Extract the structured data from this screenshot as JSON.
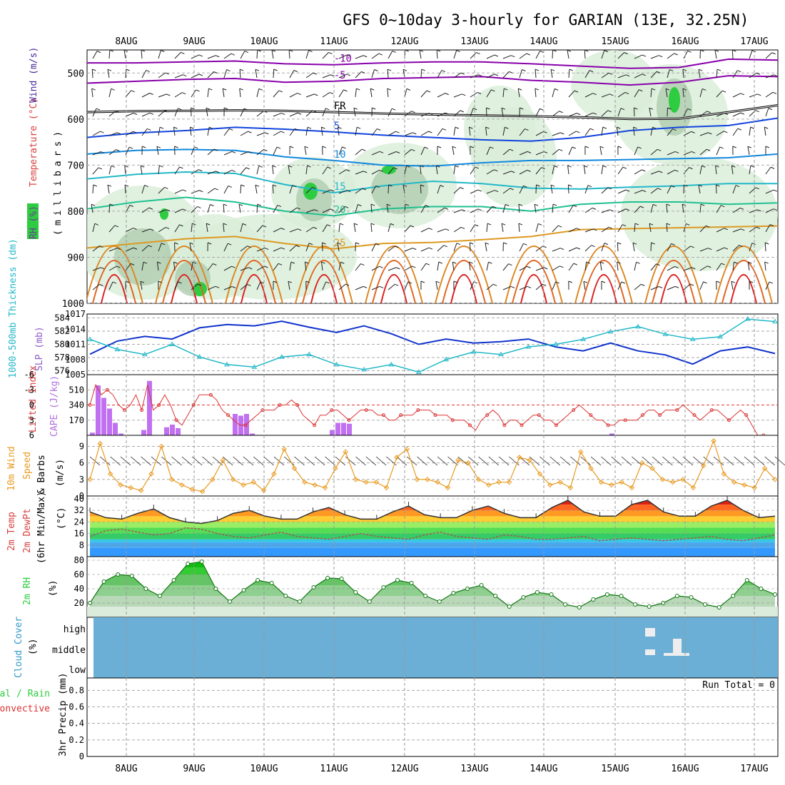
{
  "title": "GFS 0~10day 3-hourly for GARIAN (13E, 32.25N)",
  "days": [
    "8AUG",
    "9AUG",
    "10AUG",
    "11AUG",
    "12AUG",
    "13AUG",
    "14AUG",
    "15AUG",
    "16AUG",
    "17AUG"
  ],
  "colors": {
    "rh_green": "#2ecc40",
    "purple": "#8800aa",
    "blue_dark": "#1144dd",
    "cyan": "#22b8c8",
    "teal": "#20c090",
    "orange": "#dd9922",
    "red": "#dd2222",
    "lifted_red": "#dd3333",
    "cape_purple": "#c070f0",
    "wind_orange": "#e89a20",
    "cloud_blue": "#6baed6",
    "slp_cyan": "#22b8c8",
    "thick_blue": "#1133cc"
  },
  "chart_data": [
    {
      "panel": "upper-air",
      "type": "contour",
      "ylabel_parts": [
        "RH (%)",
        "Temperature (°C)",
        "Wind (m/s)"
      ],
      "axis_title": "(millibars)",
      "y_ticks": [
        "500",
        "600",
        "700",
        "800",
        "900",
        "1000"
      ],
      "y_range": [
        450,
        1000
      ],
      "temperature_contours": [
        {
          "label": "-10",
          "level_mb": [
            478,
            478,
            476,
            474,
            480,
            482,
            478,
            476,
            476,
            480,
            485,
            490,
            488,
            470,
            472
          ]
        },
        {
          "label": "-5",
          "level_mb": [
            522,
            518,
            514,
            512,
            520,
            518,
            512,
            510,
            508,
            516,
            520,
            526,
            520,
            506,
            508
          ]
        },
        {
          "label": "FR",
          "level_mb": [
            585,
            583,
            582,
            581,
            582,
            585,
            588,
            590,
            592,
            594,
            596,
            600,
            599,
            585,
            570
          ]
        },
        {
          "label": "5",
          "level_mb": [
            640,
            630,
            625,
            618,
            622,
            628,
            635,
            640,
            645,
            648,
            640,
            625,
            618,
            614,
            598
          ]
        },
        {
          "label": "10",
          "level_mb": [
            676,
            668,
            666,
            668,
            682,
            690,
            700,
            702,
            695,
            690,
            690,
            688,
            686,
            684,
            676
          ]
        },
        {
          "label": "15",
          "level_mb": [
            730,
            720,
            715,
            718,
            742,
            760,
            745,
            735,
            740,
            750,
            752,
            748,
            745,
            740,
            740
          ]
        },
        {
          "label": "20",
          "level_mb": [
            795,
            780,
            770,
            780,
            800,
            810,
            795,
            790,
            790,
            800,
            785,
            780,
            780,
            785,
            782
          ]
        },
        {
          "label": "25",
          "level_mb": [
            880,
            870,
            860,
            855,
            870,
            882,
            870,
            868,
            862,
            855,
            840,
            838,
            836,
            834,
            832
          ]
        }
      ],
      "contour_labels": [
        "-10",
        "-5",
        "FR",
        "5",
        "10",
        "15",
        "20",
        "25",
        "30"
      ]
    },
    {
      "panel": "thickness-slp",
      "type": "line",
      "ylabel_left": "1000-500mb Thickness (dm)",
      "ylabel_right": "SLP (mb)",
      "left_ticks": [
        "584",
        "582",
        "580",
        "578",
        "576"
      ],
      "right_ticks": [
        "1017",
        "1014",
        "1011",
        "1008",
        "1005"
      ],
      "series": [
        {
          "name": "1000-500mb Thickness (dm)",
          "values": [
            578.5,
            580.5,
            581.2,
            580.8,
            582.5,
            583.0,
            582.8,
            583.5,
            582.6,
            581.8,
            582.8,
            581.6,
            580.0,
            580.8,
            580.2,
            580.4,
            580.8,
            579.6,
            579.0,
            580.2,
            579.0,
            578.4,
            577.0,
            579.0,
            579.6,
            578.6
          ]
        },
        {
          "name": "SLP (mb)",
          "values": [
            1012.0,
            1010.0,
            1009.0,
            1011.0,
            1008.5,
            1007.0,
            1006.5,
            1008.5,
            1009.0,
            1007.0,
            1006.0,
            1007.0,
            1005.5,
            1008.0,
            1009.5,
            1009.0,
            1010.5,
            1011.0,
            1012.0,
            1013.5,
            1014.5,
            1013.0,
            1012.0,
            1012.5,
            1016.0,
            1015.5
          ]
        }
      ]
    },
    {
      "panel": "lifted-cape",
      "type": "bar",
      "ylabel_left": "Lifted Index",
      "ylabel_right": "CAPE (J/kg)",
      "left_ticks": [
        "-6",
        "-3",
        "0",
        "3",
        "6"
      ],
      "right_ticks": [
        "510",
        "340",
        "170"
      ],
      "cape_values": [
        30,
        560,
        420,
        300,
        140,
        20,
        0,
        0,
        0,
        60,
        610,
        0,
        0,
        90,
        120,
        80,
        0,
        0,
        0,
        0,
        0,
        0,
        0,
        0,
        0,
        240,
        220,
        240,
        20,
        0,
        0,
        0,
        0,
        0,
        0,
        0,
        0,
        0,
        0,
        0,
        0,
        0,
        60,
        140,
        140,
        130,
        0,
        0,
        0,
        0,
        0,
        0,
        0,
        0,
        0,
        0,
        0,
        0,
        0,
        0,
        0,
        0,
        0,
        0,
        0,
        0,
        0,
        0,
        0,
        0,
        0,
        0,
        0,
        0,
        0,
        0,
        0,
        0,
        0,
        0,
        0,
        0,
        0,
        0,
        0,
        0,
        0,
        0,
        0,
        0,
        0,
        20,
        0,
        0,
        0,
        0,
        0,
        0,
        0,
        0,
        0,
        0,
        0,
        0,
        0,
        0,
        0,
        0,
        0,
        0,
        0,
        0,
        0,
        0,
        0,
        0,
        0,
        0,
        0,
        0
      ],
      "lifted_values": [
        0,
        -4,
        -2,
        -3,
        -2,
        0,
        1,
        0,
        -2,
        1,
        -4,
        1,
        0,
        -2,
        0,
        3,
        4,
        2,
        0,
        -2,
        -2,
        -2,
        -1,
        1,
        2,
        3,
        4,
        4,
        3,
        2,
        1,
        1,
        1,
        0,
        0,
        -1,
        0,
        2,
        3,
        4,
        2,
        2,
        1,
        1,
        2,
        3,
        2,
        1,
        1,
        1,
        2,
        2,
        3,
        3,
        2,
        2,
        2,
        1,
        1,
        1,
        2,
        2,
        2,
        3,
        3,
        3,
        4,
        5,
        3,
        2,
        1,
        2,
        4,
        3,
        3,
        4,
        3,
        2,
        2,
        3,
        3,
        4,
        3,
        2,
        1,
        0,
        1,
        2,
        3,
        3,
        4,
        4,
        3,
        3,
        3,
        3,
        2,
        1,
        1,
        2,
        1,
        1,
        1,
        0,
        1,
        2,
        3,
        2,
        1,
        1,
        2,
        3,
        2,
        1,
        2,
        4,
        6,
        6,
        6,
        6
      ]
    },
    {
      "panel": "wind-10m",
      "type": "line",
      "ylabel": "10m Wind Speed & Barbs (m/s)",
      "y_ticks": [
        "9",
        "6",
        "3",
        "0"
      ],
      "series": [
        {
          "name": "10m Wind Speed",
          "values": [
            3.0,
            9.5,
            4.0,
            2.0,
            1.5,
            1.0,
            4.0,
            9.0,
            3.0,
            2.0,
            1.2,
            0.8,
            3.0,
            6.5,
            3.0,
            2.0,
            2.5,
            1.0,
            4.0,
            8.5,
            5.0,
            2.5,
            2.0,
            1.5,
            5.0,
            8.0,
            3.0,
            2.5,
            2.5,
            1.5,
            7.0,
            8.5,
            3.0,
            3.0,
            2.5,
            1.5,
            6.5,
            6.0,
            3.0,
            2.0,
            2.5,
            2.5,
            7.0,
            6.5,
            4.0,
            2.0,
            2.5,
            1.5,
            8.0,
            5.0,
            2.5,
            2.0,
            2.5,
            1.5,
            6.0,
            5.0,
            3.0,
            2.5,
            3.0,
            1.5,
            5.5,
            10.0,
            4.0,
            2.5,
            2.0,
            1.5,
            5.0,
            3.0
          ]
        }
      ]
    },
    {
      "panel": "temp-dewpt",
      "type": "area",
      "ylabel": "2m Temp 2m DewPt (6hr Min/Max) (°C)",
      "y_ticks": [
        "40",
        "32",
        "24",
        "16",
        "8"
      ],
      "series": [
        {
          "name": "2m Temp",
          "values": [
            31,
            27,
            26,
            30,
            33,
            27,
            24,
            23,
            25,
            30,
            32,
            28,
            26,
            26,
            31,
            34,
            29,
            26,
            26,
            31,
            35,
            29,
            27,
            27,
            32,
            35,
            30,
            27,
            27,
            34,
            39,
            31,
            28,
            28,
            36,
            39,
            31,
            28,
            28,
            35,
            39,
            32,
            27,
            28
          ]
        },
        {
          "name": "2m DewPt",
          "values": [
            14,
            18,
            19,
            17,
            15,
            16,
            20,
            19,
            16,
            14,
            13,
            15,
            17,
            14,
            13,
            12,
            14,
            16,
            14,
            13,
            12,
            15,
            17,
            14,
            13,
            12,
            15,
            14,
            12,
            12,
            13,
            14,
            11,
            12,
            13,
            12,
            11,
            12,
            13,
            14,
            12,
            11,
            13,
            15
          ]
        }
      ]
    },
    {
      "panel": "rh-2m",
      "type": "area",
      "ylabel": "2m RH (%)",
      "y_ticks": [
        "80",
        "60",
        "40",
        "20"
      ],
      "series": [
        {
          "name": "2m RH",
          "values": [
            20,
            50,
            60,
            58,
            40,
            30,
            52,
            75,
            78,
            40,
            22,
            38,
            52,
            48,
            30,
            22,
            42,
            55,
            54,
            35,
            22,
            42,
            52,
            48,
            30,
            22,
            34,
            40,
            45,
            30,
            15,
            28,
            35,
            32,
            18,
            14,
            25,
            32,
            30,
            18,
            15,
            20,
            30,
            28,
            18,
            14,
            30,
            52,
            40,
            32
          ]
        }
      ]
    },
    {
      "panel": "cloud-cover",
      "type": "bar",
      "ylabel": "Cloud Cover (%)",
      "y_ticks": [
        "high",
        "middle",
        "low"
      ]
    },
    {
      "panel": "precip",
      "type": "bar",
      "ylabel_parts": [
        "Total / Rain",
        "Convective",
        "3hr Precip (mm)"
      ],
      "y_ticks": [
        "0.8",
        "0.6",
        "0.4",
        "0.2",
        "0"
      ],
      "run_total": "Run Total = 0"
    }
  ]
}
